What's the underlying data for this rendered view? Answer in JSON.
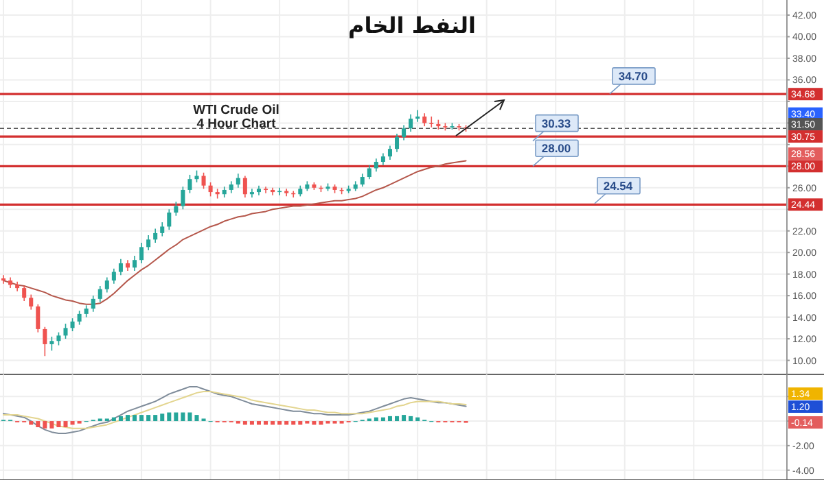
{
  "chart_data": [
    {
      "type": "candlestick",
      "title": "النفط الخام",
      "tick_labels": "y",
      "grid": true,
      "categories": [
        null,
        null,
        null,
        null,
        null,
        null,
        null,
        null,
        null,
        null,
        null,
        null,
        null,
        null,
        null,
        null,
        null,
        null,
        null,
        null,
        null,
        null,
        null,
        null,
        null,
        null,
        null,
        null,
        null,
        null,
        null,
        null,
        null,
        null,
        null,
        null,
        null,
        null,
        null,
        null,
        null,
        null,
        null,
        null,
        null,
        null,
        null,
        null,
        null,
        null,
        null,
        null,
        null,
        null,
        null,
        null,
        null,
        null,
        null,
        null,
        null,
        null,
        null,
        null,
        null,
        null,
        null,
        null,
        null,
        null,
        null,
        null,
        null,
        null,
        null,
        null,
        null,
        null,
        null,
        null,
        null,
        null,
        null,
        null,
        null,
        null,
        null,
        null,
        null,
        null,
        null,
        null,
        null,
        null,
        null,
        null,
        null,
        null,
        null,
        null,
        null,
        null,
        null,
        null,
        null,
        null,
        null,
        null,
        null,
        null,
        null,
        null,
        null,
        null
      ],
      "colors": [
        "#ef5350",
        "#ef5350",
        "#ef5350",
        "#ef5350",
        "#ef5350",
        "#ef5350",
        "#ef5350",
        "#26a69a",
        "#26a69a",
        "#26a69a",
        "#26a69a",
        "#26a69a",
        "#26a69a",
        "#26a69a",
        "#26a69a",
        "#26a69a",
        "#26a69a",
        "#26a69a",
        "#ef5350",
        "#26a69a",
        "#26a69a",
        "#26a69a",
        "#26a69a",
        "#26a69a",
        "#26a69a",
        "#26a69a",
        "#26a69a",
        "#26a69a",
        "#26a69a",
        "#ef5350",
        "#ef5350",
        "#ef5350",
        "#26a69a",
        "#26a69a",
        "#26a69a",
        "#ef5350",
        "#26a69a",
        "#26a69a",
        "#ef5350",
        "#ef5350",
        "#26a69a",
        "#ef5350",
        "#ef5350",
        "#26a69a",
        "#26a69a",
        "#ef5350",
        "#ef5350",
        "#26a69a",
        "#ef5350",
        "#ef5350",
        "#26a69a",
        "#26a69a",
        "#26a69a",
        "#26a69a",
        "#26a69a",
        "#26a69a",
        "#26a69a",
        "#26a69a",
        "#26a69a",
        "#26a69a",
        "#26a69a",
        "#ef5350",
        "#ef5350",
        "#ef5350",
        "#ef5350",
        "#26a69a",
        "#ef5350",
        "#ef5350",
        null,
        null,
        null,
        null,
        null,
        null,
        null,
        null,
        null,
        null,
        null,
        null,
        null,
        null,
        null,
        null,
        null,
        null,
        null,
        null,
        null,
        null,
        null,
        null,
        null,
        null,
        null,
        null,
        null,
        null,
        null,
        null,
        null,
        null,
        null,
        null,
        null,
        null,
        null,
        null,
        null,
        null,
        null,
        null,
        null,
        null
      ],
      "ohlc": [
        [
          17.6,
          17.9,
          17.1,
          17.4
        ],
        [
          17.4,
          17.7,
          16.7,
          17.0
        ],
        [
          17.0,
          17.3,
          16.4,
          16.7
        ],
        [
          16.7,
          16.9,
          15.5,
          15.8
        ],
        [
          15.8,
          16.1,
          14.7,
          15.0
        ],
        [
          15.0,
          15.2,
          12.6,
          12.9
        ],
        [
          12.9,
          13.1,
          10.4,
          11.5
        ],
        [
          11.5,
          12.2,
          10.9,
          11.8
        ],
        [
          11.8,
          12.6,
          11.4,
          12.3
        ],
        [
          12.3,
          13.4,
          12.0,
          13.0
        ],
        [
          13.0,
          13.9,
          12.7,
          13.6
        ],
        [
          13.6,
          14.6,
          13.3,
          14.3
        ],
        [
          14.3,
          15.1,
          14.0,
          14.8
        ],
        [
          14.8,
          16.0,
          14.5,
          15.7
        ],
        [
          15.7,
          16.9,
          15.4,
          16.6
        ],
        [
          16.6,
          17.7,
          16.3,
          17.4
        ],
        [
          17.4,
          18.5,
          17.1,
          18.2
        ],
        [
          18.2,
          19.4,
          17.9,
          19.0
        ],
        [
          19.0,
          19.3,
          18.3,
          18.6
        ],
        [
          18.6,
          19.7,
          18.3,
          19.3
        ],
        [
          19.3,
          20.9,
          19.0,
          20.5
        ],
        [
          20.5,
          21.6,
          20.2,
          21.2
        ],
        [
          21.2,
          22.2,
          20.9,
          21.8
        ],
        [
          21.8,
          22.8,
          21.5,
          22.4
        ],
        [
          22.4,
          24.0,
          22.1,
          23.7
        ],
        [
          23.7,
          24.7,
          23.4,
          24.3
        ],
        [
          24.3,
          26.1,
          24.0,
          25.8
        ],
        [
          25.8,
          27.2,
          25.5,
          26.8
        ],
        [
          26.8,
          27.6,
          26.5,
          27.1
        ],
        [
          27.1,
          27.4,
          25.9,
          26.2
        ],
        [
          26.2,
          26.5,
          25.2,
          25.6
        ],
        [
          25.6,
          25.9,
          25.0,
          25.4
        ],
        [
          25.4,
          26.1,
          25.1,
          25.8
        ],
        [
          25.8,
          26.6,
          25.5,
          26.3
        ],
        [
          26.3,
          27.3,
          26.0,
          26.9
        ],
        [
          26.9,
          27.1,
          25.1,
          25.4
        ],
        [
          25.4,
          25.9,
          25.1,
          25.6
        ],
        [
          25.6,
          26.2,
          25.3,
          25.9
        ],
        [
          25.9,
          26.1,
          25.5,
          25.8
        ],
        [
          25.8,
          26.0,
          25.3,
          25.6
        ],
        [
          25.6,
          26.0,
          25.3,
          25.7
        ],
        [
          25.7,
          25.9,
          25.2,
          25.5
        ],
        [
          25.5,
          25.7,
          25.1,
          25.4
        ],
        [
          25.4,
          26.2,
          25.2,
          25.9
        ],
        [
          25.9,
          26.6,
          25.7,
          26.3
        ],
        [
          26.3,
          26.5,
          25.8,
          26.0
        ],
        [
          26.0,
          26.2,
          25.6,
          25.9
        ],
        [
          25.9,
          26.4,
          25.7,
          26.1
        ],
        [
          26.1,
          26.3,
          25.5,
          25.8
        ],
        [
          25.8,
          26.0,
          25.4,
          25.7
        ],
        [
          25.7,
          26.2,
          25.5,
          25.9
        ],
        [
          25.9,
          26.6,
          25.7,
          26.3
        ],
        [
          26.3,
          27.3,
          26.1,
          27.0
        ],
        [
          27.0,
          28.1,
          26.8,
          27.8
        ],
        [
          27.8,
          28.7,
          27.5,
          28.4
        ],
        [
          28.4,
          29.2,
          28.1,
          28.9
        ],
        [
          28.9,
          29.9,
          28.6,
          29.6
        ],
        [
          29.6,
          31.0,
          29.3,
          30.7
        ],
        [
          30.7,
          31.8,
          30.4,
          31.5
        ],
        [
          31.5,
          32.8,
          31.2,
          32.4
        ],
        [
          32.4,
          33.2,
          32.1,
          32.6
        ],
        [
          32.6,
          32.9,
          31.7,
          32.0
        ],
        [
          32.0,
          32.6,
          31.6,
          31.9
        ],
        [
          31.9,
          32.3,
          31.4,
          31.7
        ],
        [
          31.7,
          32.0,
          31.3,
          31.6
        ],
        [
          31.6,
          32.0,
          31.4,
          31.7
        ],
        [
          31.7,
          31.9,
          31.3,
          31.6
        ],
        [
          31.6,
          31.8,
          31.2,
          31.5
        ],
        null,
        null,
        null,
        null,
        null,
        null,
        null,
        null,
        null,
        null,
        null,
        null,
        null,
        null,
        null,
        null,
        null,
        null,
        null,
        null,
        null,
        null,
        null,
        null,
        null,
        null,
        null,
        null,
        null,
        null,
        null,
        null,
        null,
        null,
        null,
        null,
        null,
        null,
        null,
        null,
        null,
        null,
        null,
        null,
        null,
        null
      ],
      "series": [
        {
          "type": "line",
          "color": "#b5574b",
          "values": [
            17.4,
            17.2,
            17.0,
            16.9,
            16.7,
            16.5,
            16.3,
            16.0,
            15.8,
            15.6,
            15.5,
            15.3,
            15.2,
            15.2,
            15.3,
            15.7,
            16.2,
            16.8,
            17.4,
            17.9,
            18.4,
            18.8,
            19.3,
            19.8,
            20.3,
            20.7,
            21.2,
            21.5,
            21.8,
            22.1,
            22.4,
            22.6,
            22.9,
            23.1,
            23.3,
            23.4,
            23.6,
            23.7,
            23.8,
            24.0,
            24.1,
            24.2,
            24.3,
            24.3,
            24.4,
            24.5,
            24.6,
            24.7,
            24.8,
            24.8,
            24.9,
            25.0,
            25.2,
            25.5,
            25.8,
            26.0,
            26.3,
            26.6,
            26.9,
            27.2,
            27.5,
            27.7,
            27.9,
            28.0,
            28.2,
            28.3,
            28.4,
            28.5,
            null,
            null,
            null,
            null,
            null,
            null,
            null,
            null,
            null,
            null,
            null,
            null,
            null,
            null,
            null,
            null,
            null,
            null,
            null,
            null,
            null,
            null,
            null,
            null,
            null,
            null,
            null,
            null,
            null,
            null,
            null,
            null,
            null,
            null,
            null,
            null,
            null,
            null,
            null,
            null,
            null,
            null,
            null,
            null,
            null,
            null
          ]
        }
      ],
      "ylim": [
        8.7,
        43.4
      ],
      "yticks": [
        {
          "value": 10,
          "label": "10.00"
        },
        {
          "value": 12,
          "label": "12.00"
        },
        {
          "value": 14,
          "label": "14.00"
        },
        {
          "value": 16,
          "label": "16.00"
        },
        {
          "value": 18,
          "label": "18.00"
        },
        {
          "value": 20,
          "label": "20.00"
        },
        {
          "value": 22,
          "label": "22.00"
        },
        {
          "value": 24,
          "label": null
        },
        {
          "value": 26,
          "label": "26.00"
        },
        {
          "value": 28,
          "label": null
        },
        {
          "value": 30,
          "label": null
        },
        {
          "value": 32,
          "label": null
        },
        {
          "value": 34,
          "label": null
        },
        {
          "value": 36,
          "label": "36.00"
        },
        {
          "value": 38,
          "label": "38.00"
        },
        {
          "value": 40,
          "label": "40.00"
        },
        {
          "value": 42,
          "label": "42.00"
        }
      ],
      "ref_lines": [
        {
          "axis": "y",
          "value": 34.68,
          "label": "34.68",
          "color": "#d32f2f"
        },
        {
          "axis": "y",
          "value": 31.5,
          "label": "31.50",
          "color": "#555555",
          "line_style": "dashed"
        },
        {
          "axis": "y",
          "value": 30.75,
          "label": "30.75",
          "color": "#d32f2f"
        },
        {
          "axis": "y",
          "value": 28.0,
          "label": "28.00",
          "color": "#d32f2f"
        },
        {
          "axis": "y",
          "value": 24.44,
          "label": "24.44",
          "color": "#d32f2f"
        }
      ],
      "annotations": [
        "WTI Crude Oil",
        "4 Hour Chart",
        {
          "text": "34.70",
          "y": 34.7
        },
        {
          "text": "30.33",
          "y": 30.33
        },
        {
          "text": "28.00",
          "y": 28.0
        },
        {
          "text": "24.54",
          "y": 24.54
        },
        "33.40",
        "28.56"
      ]
    },
    {
      "type": "bar",
      "tick_labels": "y",
      "grid": true,
      "categories": [
        null,
        null,
        null,
        null,
        null,
        null,
        null,
        null,
        null,
        null,
        null,
        null,
        null,
        null,
        null,
        null,
        null,
        null,
        null,
        null,
        null,
        null,
        null,
        null,
        null,
        null,
        null,
        null,
        null,
        null,
        null,
        null,
        null,
        null,
        null,
        null,
        null,
        null,
        null,
        null,
        null,
        null,
        null,
        null,
        null,
        null,
        null,
        null,
        null,
        null,
        null,
        null,
        null,
        null,
        null,
        null,
        null,
        null,
        null,
        null,
        null,
        null,
        null,
        null,
        null,
        null,
        null,
        null,
        null,
        null,
        null,
        null,
        null,
        null,
        null,
        null,
        null,
        null,
        null,
        null,
        null,
        null,
        null,
        null,
        null,
        null,
        null,
        null,
        null,
        null,
        null,
        null,
        null,
        null,
        null,
        null,
        null,
        null,
        null,
        null,
        null,
        null,
        null,
        null,
        null,
        null,
        null,
        null,
        null,
        null,
        null,
        null,
        null,
        null
      ],
      "values": [
        0.1,
        0.1,
        -0.1,
        -0.1,
        -0.3,
        -0.5,
        -0.6,
        -0.6,
        -0.5,
        -0.5,
        -0.3,
        -0.2,
        0.0,
        0.1,
        0.2,
        0.2,
        0.3,
        0.4,
        0.5,
        0.5,
        0.5,
        0.5,
        0.5,
        0.6,
        0.7,
        0.7,
        0.7,
        0.7,
        0.5,
        0.2,
        0.0,
        -0.1,
        -0.1,
        -0.1,
        -0.2,
        -0.3,
        -0.3,
        -0.3,
        -0.3,
        -0.3,
        -0.3,
        -0.3,
        -0.3,
        -0.3,
        -0.2,
        -0.3,
        -0.3,
        -0.2,
        -0.2,
        -0.2,
        -0.1,
        0.0,
        0.1,
        0.2,
        0.3,
        0.3,
        0.4,
        0.4,
        0.5,
        0.4,
        0.3,
        0.1,
        0.0,
        -0.1,
        -0.1,
        -0.1,
        -0.1,
        -0.14,
        null,
        null,
        null,
        null,
        null,
        null,
        null,
        null,
        null,
        null,
        null,
        null,
        null,
        null,
        null,
        null,
        null,
        null,
        null,
        null,
        null,
        null,
        null,
        null,
        null,
        null,
        null,
        null,
        null,
        null,
        null,
        null,
        null,
        null,
        null,
        null,
        null,
        null,
        null,
        null,
        null,
        null,
        null,
        null,
        null,
        null
      ],
      "colors": [
        "#26a69a",
        "#26a69a",
        "#ef5350",
        "#ef5350",
        "#ef5350",
        "#ef5350",
        "#ef5350",
        "#ef5350",
        "#ef5350",
        "#ef5350",
        "#ef5350",
        "#ef5350",
        "#26a69a",
        "#26a69a",
        "#26a69a",
        "#26a69a",
        "#26a69a",
        "#26a69a",
        "#26a69a",
        "#26a69a",
        "#26a69a",
        "#26a69a",
        "#26a69a",
        "#26a69a",
        "#26a69a",
        "#26a69a",
        "#26a69a",
        "#26a69a",
        "#26a69a",
        "#26a69a",
        "#26a69a",
        "#ef5350",
        "#ef5350",
        "#ef5350",
        "#ef5350",
        "#ef5350",
        "#ef5350",
        "#ef5350",
        "#ef5350",
        "#ef5350",
        "#ef5350",
        "#ef5350",
        "#ef5350",
        "#ef5350",
        "#ef5350",
        "#ef5350",
        "#ef5350",
        "#ef5350",
        "#ef5350",
        "#ef5350",
        "#ef5350",
        "#26a69a",
        "#26a69a",
        "#26a69a",
        "#26a69a",
        "#26a69a",
        "#26a69a",
        "#26a69a",
        "#26a69a",
        "#26a69a",
        "#26a69a",
        "#26a69a",
        "#26a69a",
        "#ef5350",
        "#ef5350",
        "#ef5350",
        "#ef5350",
        "#ef5350",
        null,
        null,
        null,
        null,
        null,
        null,
        null,
        null,
        null,
        null,
        null,
        null,
        null,
        null,
        null,
        null,
        null,
        null,
        null,
        null,
        null,
        null,
        null,
        null,
        null,
        null,
        null,
        null,
        null,
        null,
        null,
        null,
        null,
        null,
        null,
        null,
        null,
        null,
        null,
        null,
        null,
        null,
        null,
        null,
        null,
        null
      ],
      "series": [
        {
          "type": "line",
          "color": "#7f8c9a",
          "values": [
            0.6,
            0.5,
            0.4,
            0.3,
            0.0,
            -0.4,
            -0.7,
            -0.9,
            -1.0,
            -1.0,
            -0.9,
            -0.8,
            -0.6,
            -0.4,
            -0.2,
            -0.1,
            0.2,
            0.5,
            0.8,
            1.0,
            1.2,
            1.4,
            1.6,
            1.9,
            2.2,
            2.4,
            2.6,
            2.8,
            2.8,
            2.6,
            2.4,
            2.2,
            2.1,
            2.0,
            1.8,
            1.6,
            1.4,
            1.3,
            1.2,
            1.1,
            1.0,
            0.9,
            0.8,
            0.8,
            0.7,
            0.6,
            0.6,
            0.5,
            0.5,
            0.5,
            0.5,
            0.6,
            0.7,
            0.8,
            1.0,
            1.2,
            1.4,
            1.6,
            1.8,
            1.9,
            1.8,
            1.7,
            1.6,
            1.5,
            1.5,
            1.4,
            1.3,
            1.2,
            null,
            null,
            null,
            null,
            null,
            null,
            null,
            null,
            null,
            null,
            null,
            null,
            null,
            null,
            null,
            null,
            null,
            null,
            null,
            null,
            null,
            null,
            null,
            null,
            null,
            null,
            null,
            null,
            null,
            null,
            null,
            null,
            null,
            null,
            null,
            null,
            null,
            null,
            null,
            null,
            null,
            null,
            null,
            null,
            null,
            null
          ]
        },
        {
          "type": "line",
          "color": "#e3d58f",
          "values": [
            0.5,
            0.5,
            0.5,
            0.4,
            0.3,
            0.2,
            0.0,
            -0.2,
            -0.4,
            -0.5,
            -0.6,
            -0.6,
            -0.6,
            -0.5,
            -0.4,
            -0.3,
            -0.1,
            0.1,
            0.3,
            0.5,
            0.7,
            0.9,
            1.1,
            1.3,
            1.5,
            1.7,
            1.9,
            2.1,
            2.3,
            2.4,
            2.4,
            2.3,
            2.2,
            2.1,
            2.0,
            1.9,
            1.7,
            1.6,
            1.5,
            1.4,
            1.3,
            1.2,
            1.1,
            1.0,
            0.9,
            0.9,
            0.8,
            0.7,
            0.7,
            0.6,
            0.6,
            0.6,
            0.6,
            0.7,
            0.8,
            0.9,
            1.0,
            1.2,
            1.3,
            1.5,
            1.6,
            1.6,
            1.6,
            1.6,
            1.5,
            1.4,
            1.4,
            1.34,
            null,
            null,
            null,
            null,
            null,
            null,
            null,
            null,
            null,
            null,
            null,
            null,
            null,
            null,
            null,
            null,
            null,
            null,
            null,
            null,
            null,
            null,
            null,
            null,
            null,
            null,
            null,
            null,
            null,
            null,
            null,
            null,
            null,
            null,
            null,
            null,
            null,
            null,
            null,
            null,
            null,
            null,
            null,
            null,
            null,
            null
          ]
        }
      ],
      "ylim": [
        -4.8,
        3.8
      ],
      "yticks": [
        {
          "value": 2,
          "label": null
        },
        {
          "value": 0,
          "label": null
        },
        {
          "value": -2,
          "label": "-2.00"
        },
        {
          "value": -4,
          "label": "-4.00"
        }
      ],
      "annotations": [
        "1.34",
        "1.20",
        "-0.14"
      ]
    }
  ]
}
